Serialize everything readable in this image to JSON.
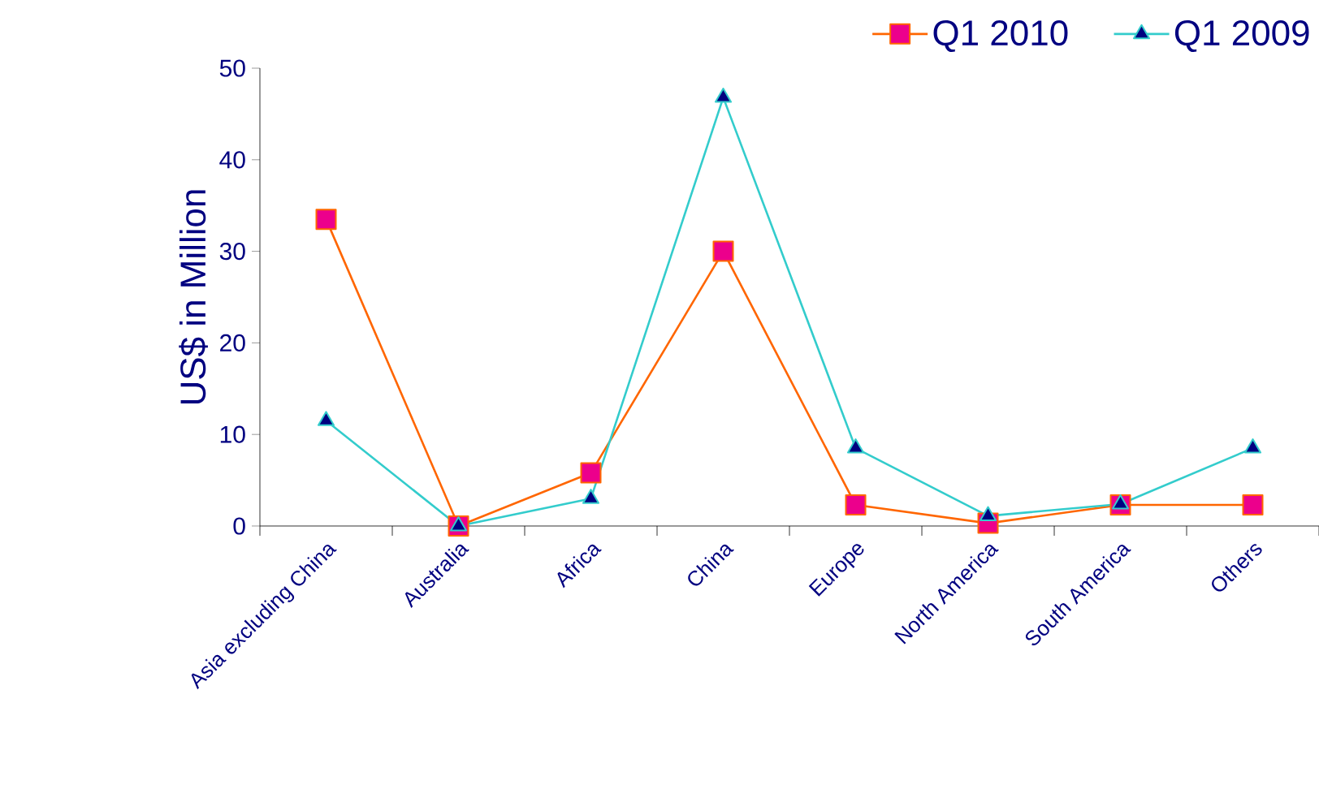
{
  "chart_data": {
    "type": "line",
    "ylabel": "US$ in Million",
    "categories": [
      "Asia excluding China",
      "Australia",
      "Africa",
      "China",
      "Europe",
      "North America",
      "South America",
      "Others"
    ],
    "series": [
      {
        "name": "Q1 2010",
        "color": "#ff6600",
        "marker": "square",
        "values": [
          33.5,
          0,
          5.8,
          30,
          2.3,
          0.3,
          2.3,
          2.3
        ]
      },
      {
        "name": "Q1 2009",
        "color": "#33cccc",
        "marker": "triangle",
        "values": [
          11.5,
          0,
          3,
          46.8,
          8.5,
          1.1,
          2.4,
          8.5
        ]
      }
    ],
    "ylim": [
      0,
      50
    ],
    "yticks": [
      0,
      10,
      20,
      30,
      40,
      50
    ],
    "grid": false,
    "legend": "top right",
    "line_style": "solid"
  }
}
